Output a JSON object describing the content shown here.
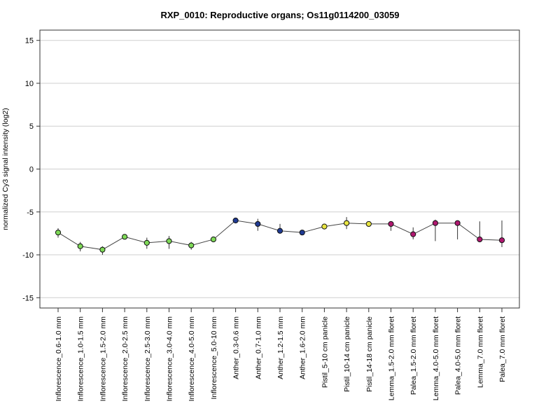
{
  "chart_data": {
    "type": "line",
    "title": "RXP_0010: Reproductive organs; Os11g0114200_03059",
    "xlabel": "",
    "ylabel": "normalized Cy3 signal intensity (log2)",
    "ylim": [
      -16.2,
      16.2
    ],
    "yticks": [
      -15,
      -10,
      -5,
      0,
      5,
      10,
      15
    ],
    "ytick_labels": [
      "-15",
      "-10",
      "-5",
      "0",
      "5",
      "10",
      "15"
    ],
    "grid": "horizontal",
    "legend": "none",
    "categories": [
      "Inflorescence_0.6-1.0 mm",
      "Inflorescence_1.0-1.5 mm",
      "Inflorescence_1.5-2.0 mm",
      "Inflorescence_2.0-2.5 mm",
      "Inflorescence_2.5-3.0 mm",
      "Inflorescence_3.0-4.0 mm",
      "Inflorescence_4.0-5.0 mm",
      "Inflorescence_5.0-10 mm",
      "Anther_0.3-0.6 mm",
      "Anther_0.7-1.0 mm",
      "Anther_1.2-1.5 mm",
      "Anther_1.6-2.0 mm",
      "Pistil_5-10 cm panicle",
      "Pistil_10-14 cm panicle",
      "Pistil_14-18 cm panicle",
      "Lemma_1.5-2.0 mm floret",
      "Palea_1.5-2.0 mm floret",
      "Lemma_4.0-5.0 mm floret",
      "Palea_4.0-5.0 mm floret",
      "Lemma_7.0 mm floret",
      "Palea_7.0 mm floret"
    ],
    "series": [
      {
        "values": [
          -7.4,
          -9.0,
          -9.4,
          -7.9,
          -8.6,
          -8.4,
          -8.9,
          -8.2,
          -6.0,
          -6.4,
          -7.2,
          -7.4,
          -6.7,
          -6.3,
          -6.4,
          -6.4,
          -7.6,
          -6.3,
          -6.3,
          -8.2,
          -8.3
        ],
        "error_low": [
          -8.0,
          -9.6,
          -10.0,
          -8.1,
          -9.3,
          -9.3,
          -9.4,
          -8.4,
          -6.2,
          -7.2,
          -7.4,
          -7.5,
          -7.0,
          -7.0,
          -6.6,
          -7.2,
          -8.2,
          -8.4,
          -8.2,
          -8.4,
          -9.1
        ],
        "error_high": [
          -6.9,
          -8.5,
          -9.0,
          -7.8,
          -8.0,
          -7.8,
          -8.5,
          -8.0,
          -5.7,
          -5.8,
          -6.4,
          -7.2,
          -6.4,
          -5.6,
          -6.1,
          -6.3,
          -6.8,
          -5.9,
          -6.0,
          -6.1,
          -6.0
        ],
        "point_colors": [
          "#7ED957",
          "#7ED957",
          "#7ED957",
          "#7ED957",
          "#7ED957",
          "#7ED957",
          "#7ED957",
          "#7ED957",
          "#1F3A93",
          "#1F3A93",
          "#1F3A93",
          "#1F3A93",
          "#E8E542",
          "#E8E542",
          "#E8E542",
          "#B01870",
          "#B01870",
          "#B01870",
          "#B01870",
          "#B01870",
          "#B01870"
        ]
      }
    ]
  }
}
